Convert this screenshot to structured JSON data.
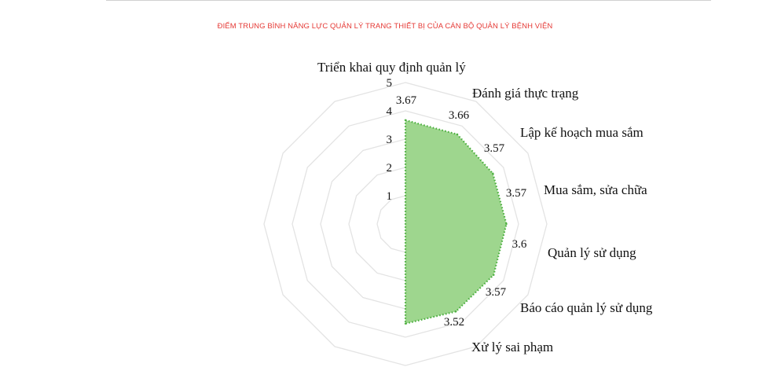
{
  "chart_data": {
    "type": "radar",
    "title": "ĐIỂM TRUNG BÌNH NĂNG LỰC QUẢN LÝ TRANG THIẾT BỊ CỦA CÁN BỘ QUẢN LÝ BỆNH VIỆN",
    "categories": [
      "Triển khai quy định quản lý",
      "Đánh giá thực trạng",
      "Lập kế hoạch mua sắm",
      "Mua sắm, sửa chữa",
      "Quản lý sử dụng",
      "Báo cáo quản lý sử dụng",
      "Xử lý sai phạm"
    ],
    "total_axes": 12,
    "values": [
      3.67,
      3.66,
      3.57,
      3.57,
      3.6,
      3.57,
      3.52
    ],
    "value_labels": [
      "3.67",
      "3.66",
      "3.57",
      "3.57",
      "3.6",
      "3.57",
      "3.52"
    ],
    "rlim": [
      0,
      5
    ],
    "ticks": [
      1,
      2,
      3,
      4,
      5
    ],
    "tick_labels": [
      "1",
      "2",
      "3",
      "4",
      "5"
    ],
    "grid": true,
    "colors": {
      "fill": "#9ed68e",
      "line": "#4caf3f",
      "grid": "#e3e3e3",
      "title": "#e53935"
    }
  }
}
